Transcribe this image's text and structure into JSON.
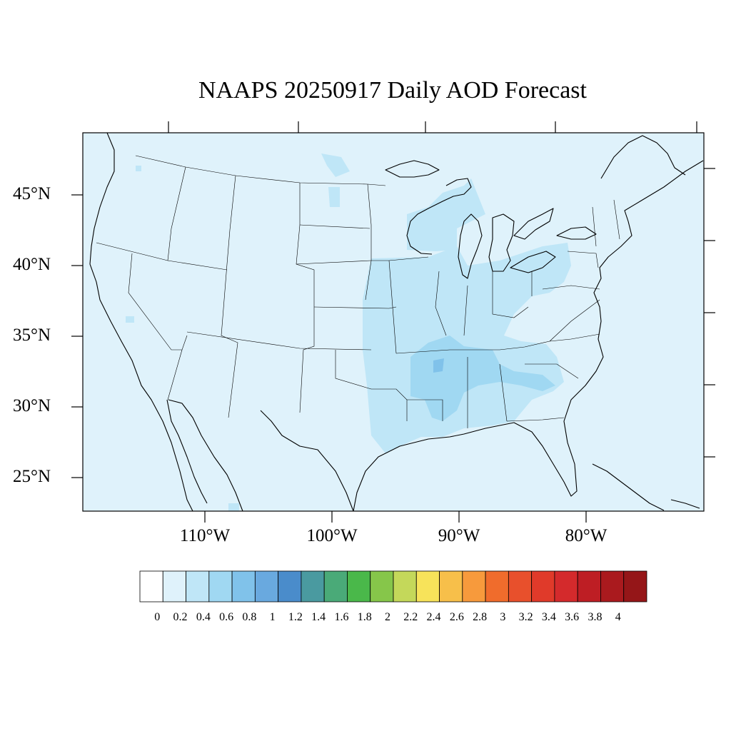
{
  "title": "NAAPS 20250917 Daily AOD Forecast",
  "lat_labels": [
    "45°N",
    "40°N",
    "35°N",
    "30°N",
    "25°N"
  ],
  "lon_labels": [
    "110°W",
    "100°W",
    "90°W",
    "80°W"
  ],
  "colorbar": {
    "labels": [
      "0",
      "0.2",
      "0.4",
      "0.6",
      "0.8",
      "1",
      "1.2",
      "1.4",
      "1.6",
      "1.8",
      "2",
      "2.2",
      "2.4",
      "2.6",
      "2.8",
      "3",
      "3.2",
      "3.4",
      "3.6",
      "3.8",
      "4"
    ],
    "colors": [
      "#ffffff",
      "#dff2fb",
      "#bfe6f7",
      "#a0d8f2",
      "#80c2ea",
      "#69a9df",
      "#4a8ccb",
      "#4a9aa0",
      "#4aaa78",
      "#4ab84a",
      "#86c64a",
      "#c4d85a",
      "#f7e35a",
      "#f7bf4a",
      "#f79a3c",
      "#f06c2c",
      "#e8502c",
      "#e03a2a",
      "#d42a2c",
      "#be1e24",
      "#aa1a1e",
      "#951618"
    ]
  },
  "map_colors": {
    "ocean_and_land": "#dff2fb",
    "aod_0_2_to_0_4": "#bfe6f7",
    "aod_0_4_to_0_6": "#a0d8f2"
  }
}
